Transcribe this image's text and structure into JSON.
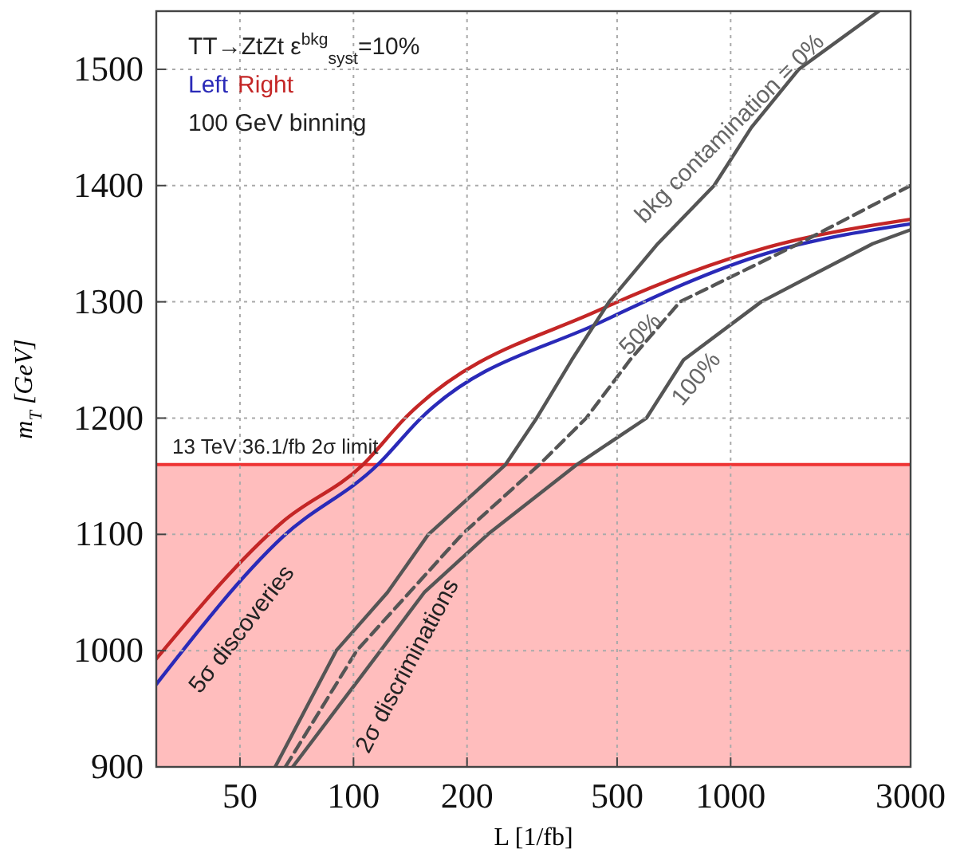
{
  "chart_data": {
    "type": "line",
    "xlabel": "L [1/fb]",
    "ylabel": "m$_{T}$ [GeV]",
    "log": "x",
    "xlim": [
      30,
      3000
    ],
    "xticks": [
      50,
      100,
      200,
      500,
      1000,
      3000
    ],
    "ylim": [
      900,
      1550
    ],
    "yticks": [
      900,
      1000,
      1100,
      1200,
      1300,
      1400,
      1500
    ],
    "grid": true,
    "legend": "top left",
    "series": [
      {
        "name": "Left",
        "color": "#2a2ab8",
        "x": [
          30,
          65,
          116,
          151,
          449,
          1254,
          3000
        ],
        "values": [
          971,
          1098,
          1160,
          1200,
          1282,
          1342,
          1367
        ]
      },
      {
        "name": "Right",
        "color": "#c42626",
        "x": [
          30,
          65,
          106,
          137,
          449,
          1254,
          3000
        ],
        "values": [
          993,
          1111,
          1160,
          1200,
          1293,
          1347,
          1371
        ]
      },
      {
        "color": "#555555",
        "line_style": "solid",
        "x": [
          62,
          90,
          123,
          158,
          253,
          306,
          379,
          476,
          641,
          904,
          1135,
          1516,
          2470
        ],
        "values": [
          900,
          1000,
          1050,
          1100,
          1160,
          1200,
          1250,
          1300,
          1350,
          1400,
          1450,
          1500,
          1550
        ]
      },
      {
        "color": "#555555",
        "line_style": "dashed",
        "x": [
          66,
          102,
          194,
          311,
          414,
          541,
          734,
          1516,
          3000
        ],
        "values": [
          900,
          1000,
          1100,
          1160,
          1200,
          1250,
          1300,
          1350,
          1400
        ]
      },
      {
        "color": "#555555",
        "line_style": "solid",
        "x": [
          69,
          118,
          154,
          227,
          391,
          598,
          750,
          1205,
          2380,
          3000
        ],
        "values": [
          900,
          1000,
          1050,
          1100,
          1160,
          1200,
          1250,
          1300,
          1350,
          1362
        ]
      }
    ],
    "bands": [
      {
        "axis": "y",
        "from": 900,
        "to": 1160,
        "color": "#ffbdbd"
      }
    ],
    "ref_lines": [
      {
        "axis": "y",
        "value": 1160,
        "label": "13 TeV 36.1/fb 2σ limit",
        "color": "#ee3333"
      }
    ],
    "annotations": [
      "TT→ZtZt ε$^{bkg}$$_{syst}$=10%",
      "100 GeV binning",
      "bkg contamination = 0%",
      "50%",
      "100%",
      "5σ discoveries",
      "2σ discriminations"
    ]
  }
}
